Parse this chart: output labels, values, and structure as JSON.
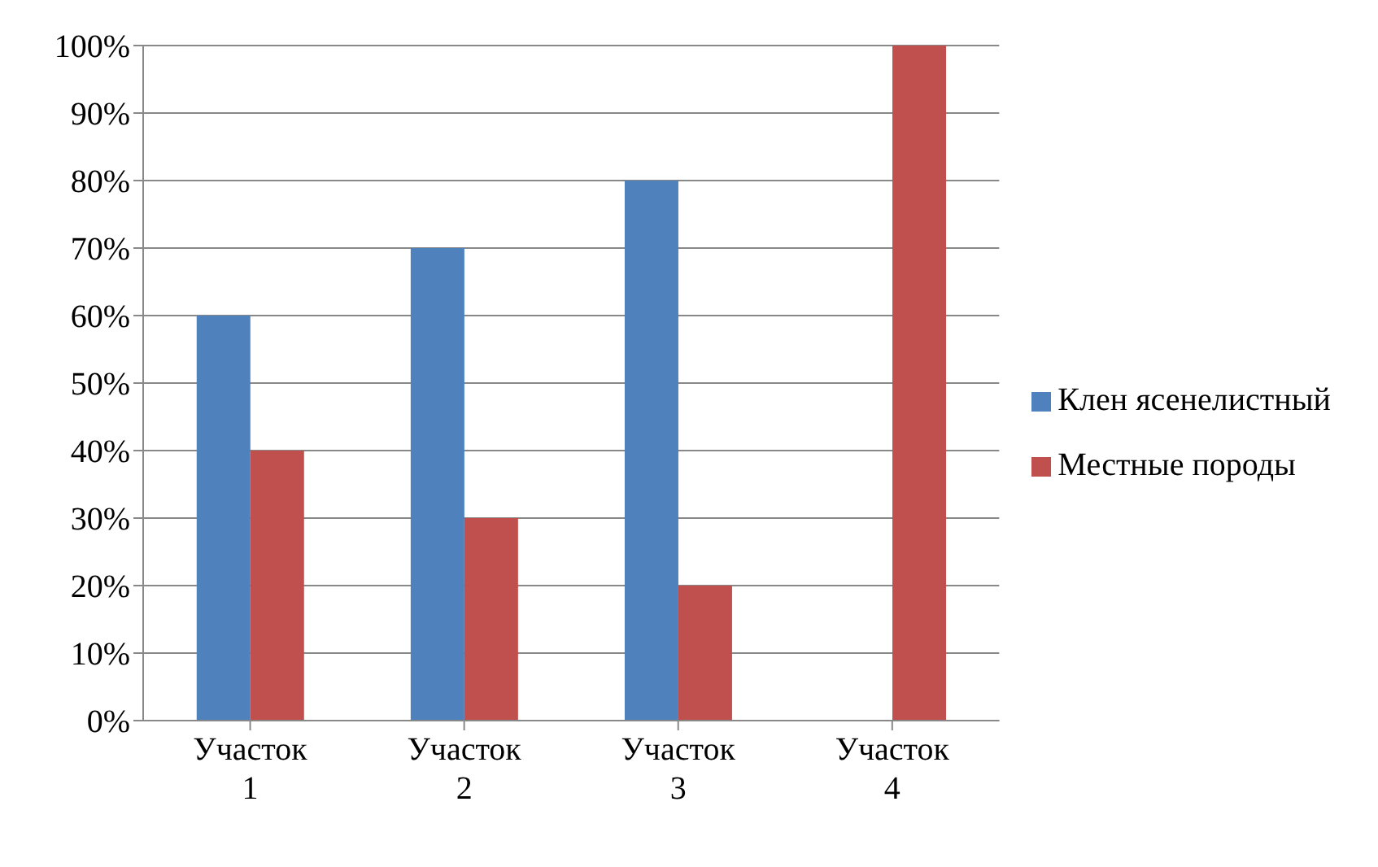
{
  "chart_data": {
    "type": "bar",
    "categories": [
      "Участок 1",
      "Участок 2",
      "Участок 3",
      "Участок 4"
    ],
    "series": [
      {
        "name": "Клен ясенелистный",
        "color": "#4f81bd",
        "values": [
          60,
          70,
          80,
          0
        ]
      },
      {
        "name": "Местные породы",
        "color": "#c0504d",
        "values": [
          40,
          30,
          20,
          100
        ]
      }
    ],
    "ylim": [
      0,
      100
    ],
    "yticks": [
      {
        "value": 0,
        "label": "0%"
      },
      {
        "value": 10,
        "label": "10%"
      },
      {
        "value": 20,
        "label": "20%"
      },
      {
        "value": 30,
        "label": "30%"
      },
      {
        "value": 40,
        "label": "40%"
      },
      {
        "value": 50,
        "label": "50%"
      },
      {
        "value": 60,
        "label": "60%"
      },
      {
        "value": 70,
        "label": "70%"
      },
      {
        "value": 80,
        "label": "80%"
      },
      {
        "value": 90,
        "label": "90%"
      },
      {
        "value": 100,
        "label": "100%"
      }
    ],
    "grid": "y",
    "legend": "right"
  }
}
